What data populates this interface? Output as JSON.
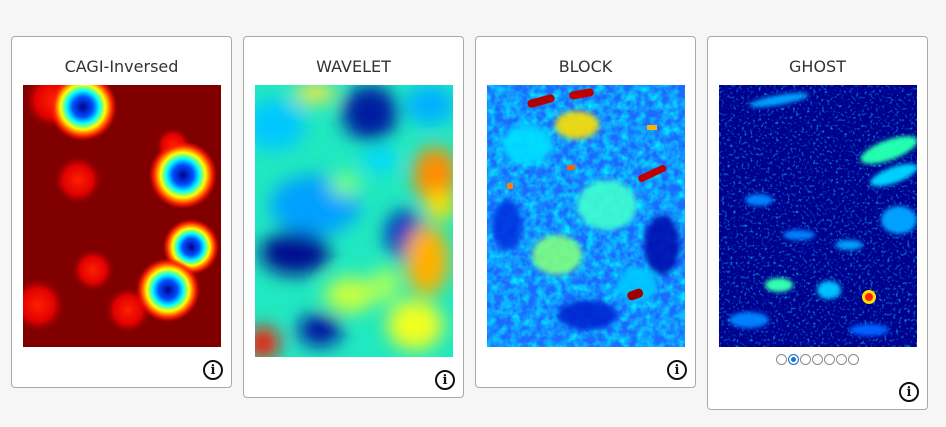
{
  "cards": [
    {
      "title": "CAGI-Inversed",
      "map": "cagi-inversed-heatmap",
      "info_icon": "info-icon"
    },
    {
      "title": "WAVELET",
      "map": "wavelet-heatmap",
      "info_icon": "info-icon"
    },
    {
      "title": "BLOCK",
      "map": "block-heatmap",
      "info_icon": "info-icon"
    },
    {
      "title": "GHOST",
      "map": "ghost-heatmap",
      "info_icon": "info-icon"
    }
  ],
  "ghost_pager": {
    "total": 7,
    "active_index": 1
  },
  "colors": {
    "jet_dark_red": "#800000",
    "jet_red": "#ff0000",
    "jet_yellow": "#ffff00",
    "jet_cyan": "#00ffff",
    "jet_blue": "#0000ff",
    "jet_dark_blue": "#00008f",
    "accent": "#1e73d2"
  }
}
